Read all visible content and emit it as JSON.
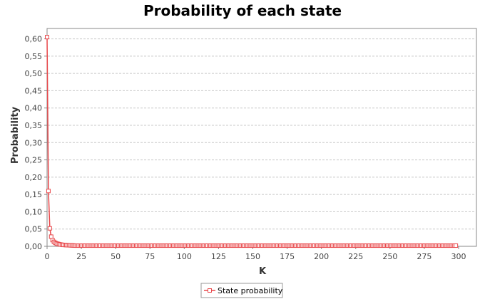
{
  "chart_data": {
    "type": "line",
    "title": "Probability of each state",
    "xlabel": "K",
    "ylabel": "Probability",
    "xlim": [
      0,
      313
    ],
    "ylim": [
      0,
      0.63
    ],
    "x_ticks": [
      0,
      25,
      50,
      75,
      100,
      125,
      150,
      175,
      200,
      225,
      250,
      275,
      300
    ],
    "x_tick_labels": [
      "0",
      "25",
      "50",
      "75",
      "100",
      "125",
      "150",
      "175",
      "200",
      "225",
      "250",
      "275",
      "300"
    ],
    "y_ticks": [
      0,
      0.05,
      0.1,
      0.15,
      0.2,
      0.25,
      0.3,
      0.35,
      0.4,
      0.45,
      0.5,
      0.55,
      0.6
    ],
    "y_tick_labels": [
      "0,00",
      "0,05",
      "0,10",
      "0,15",
      "0,20",
      "0,25",
      "0,30",
      "0,35",
      "0,40",
      "0,45",
      "0,50",
      "0,55",
      "0,60"
    ],
    "grid": true,
    "legend_position": "bottom-center",
    "series": [
      {
        "name": "State probability",
        "color": "#e8474a",
        "marker": "square-open",
        "x_range": [
          0,
          298
        ],
        "head_values": [
          0.605,
          0.16,
          0.052,
          0.028,
          0.018,
          0.013,
          0.01,
          0.008,
          0.007,
          0.006,
          0.005,
          0.0045,
          0.004,
          0.0038,
          0.0035,
          0.0032,
          0.003,
          0.0028,
          0.0026,
          0.0025
        ],
        "tail_value": 0.002
      }
    ]
  }
}
